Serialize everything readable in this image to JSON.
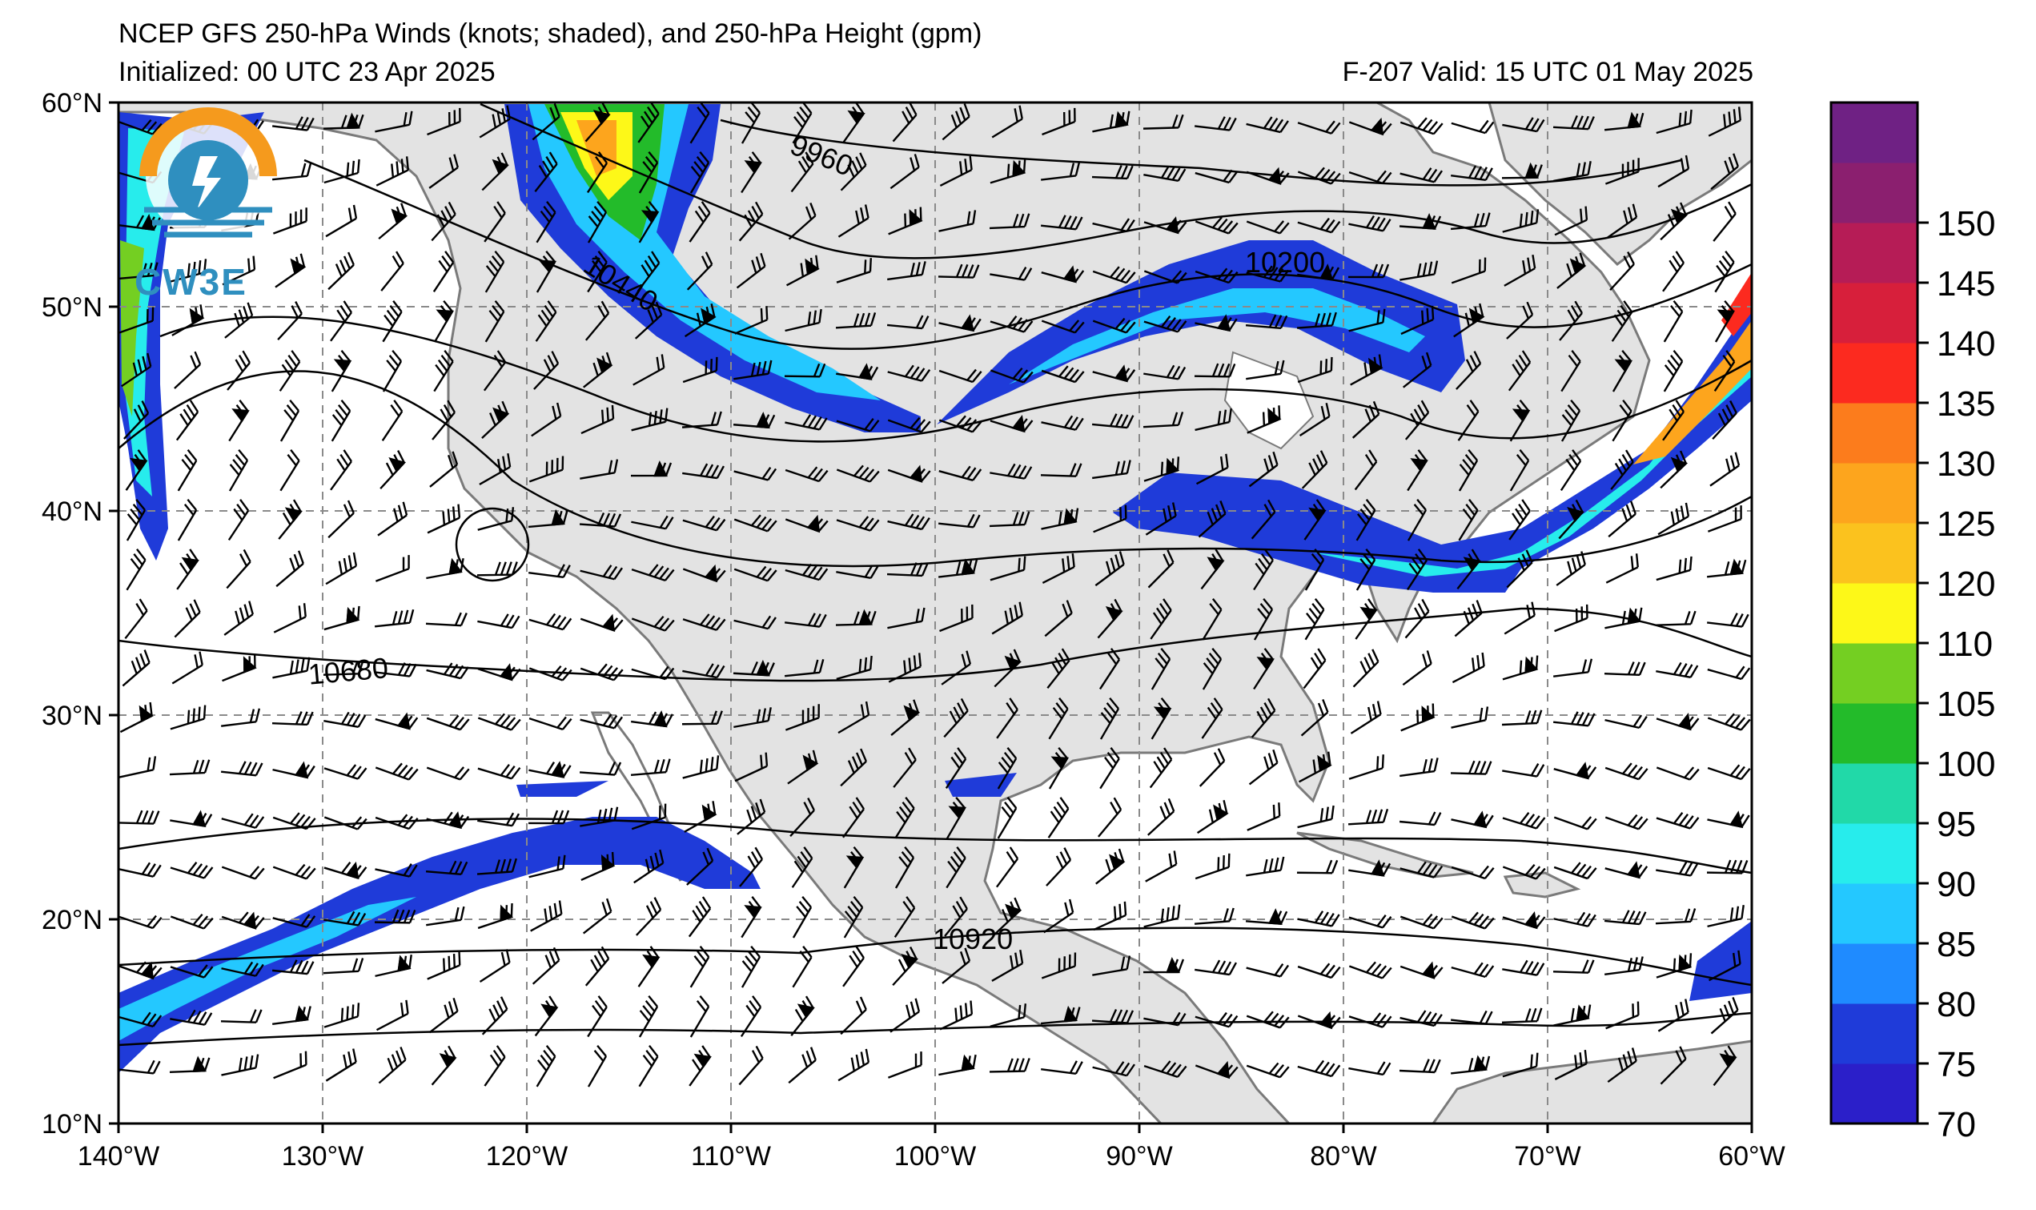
{
  "header": {
    "title_line1": "NCEP GFS 250-hPa Winds (knots; shaded), and 250-hPa Height (gpm)",
    "title_line2": "Initialized: 00 UTC 23 Apr 2025",
    "valid_line": "F-207  Valid: 15 UTC 01 May 2025"
  },
  "logo": {
    "text": "CW3E",
    "icon": "cw3e-logo-icon"
  },
  "map": {
    "projection": "plate-carree",
    "lon_range": [
      -140,
      -60
    ],
    "lat_range": [
      10,
      60
    ],
    "lat_labels": [
      "60°N",
      "50°N",
      "40°N",
      "30°N",
      "20°N",
      "10°N"
    ],
    "lon_labels": [
      "140°W",
      "130°W",
      "120°W",
      "110°W",
      "100°W",
      "90°W",
      "80°W",
      "70°W",
      "60°W"
    ],
    "contour_labels": [
      "9960",
      "10200",
      "10440",
      "10680",
      "10920"
    ],
    "land_color": "#e3e3e3",
    "ocean_color": "#ffffff"
  },
  "colorbar": {
    "labels": [
      "150",
      "145",
      "140",
      "135",
      "130",
      "125",
      "120",
      "110",
      "105",
      "100",
      "95",
      "90",
      "85",
      "80",
      "75",
      "70"
    ],
    "colors": [
      "#2b1fc9",
      "#1f3bd9",
      "#1f8bff",
      "#24c8ff",
      "#27ecec",
      "#21d9a8",
      "#23bb2a",
      "#74cf22",
      "#fdf818",
      "#fbc21e",
      "#fda51d",
      "#fc7c1c",
      "#fc2a1f",
      "#d71f3b",
      "#b61c56",
      "#8b1f6f",
      "#6f2184"
    ]
  }
}
